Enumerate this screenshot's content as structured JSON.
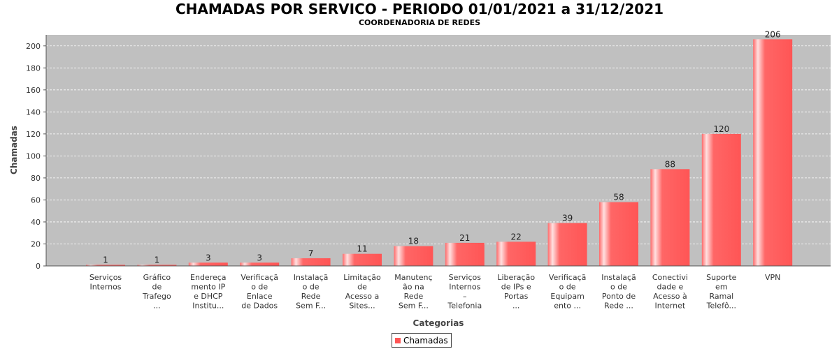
{
  "chart_data": {
    "type": "bar",
    "title": "CHAMADAS POR SERVICO - PERIODO 01/01/2021 a 31/12/2021",
    "subtitle": "COORDENADORIA DE REDES",
    "xlabel": "Categorias",
    "ylabel": "Chamadas",
    "ylim": [
      0,
      210
    ],
    "yticks": [
      0,
      20,
      40,
      60,
      80,
      100,
      120,
      140,
      160,
      180,
      200
    ],
    "grid": true,
    "legend_position": "bottom",
    "bar_color": "#ff5555",
    "plot_background": "#c0c0c0",
    "categories": [
      [
        "Serviços",
        "Internos"
      ],
      [
        "Gráfico",
        "de",
        "Trafego",
        "..."
      ],
      [
        "Endereça",
        "mento IP",
        "e DHCP",
        "Institu..."
      ],
      [
        "Verificaçã",
        "o de",
        "Enlace",
        "de Dados"
      ],
      [
        "Instalaçã",
        "o de",
        "Rede",
        "Sem F..."
      ],
      [
        "Limitação",
        "de",
        "Acesso a",
        "Sites..."
      ],
      [
        "Manutenç",
        "ão na",
        "Rede",
        "Sem F..."
      ],
      [
        "Serviços",
        "Internos",
        "–",
        "Telefonia"
      ],
      [
        "Liberação",
        "de IPs e",
        "Portas",
        "..."
      ],
      [
        "Verificaçã",
        "o de",
        "Equipam",
        "ento ..."
      ],
      [
        "Instalaçã",
        "o de",
        "Ponto de",
        "Rede ..."
      ],
      [
        "Conectivi",
        "dade e",
        "Acesso à",
        "Internet"
      ],
      [
        "Suporte",
        "em",
        "Ramal",
        "Telefô..."
      ],
      [
        "VPN"
      ]
    ],
    "series": [
      {
        "name": "Chamadas",
        "values": [
          1,
          1,
          3,
          3,
          7,
          11,
          18,
          21,
          22,
          39,
          58,
          88,
          120,
          206
        ]
      }
    ]
  }
}
